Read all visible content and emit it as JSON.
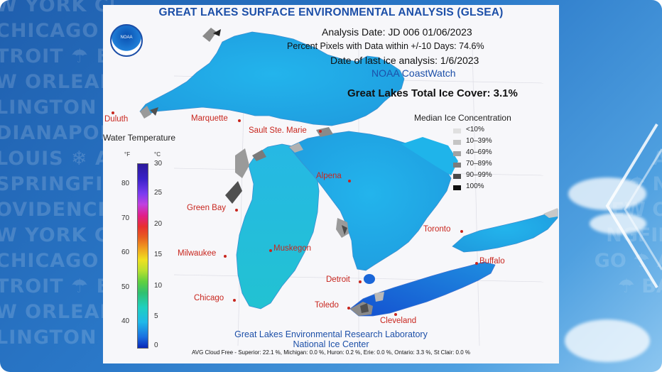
{
  "background": {
    "city_words_left": [
      "W YORK CI",
      "CHICAGO A",
      "TROIT ☂ BA",
      "W ORLEANS",
      "LINGTON ☂",
      "DIANAPOLI",
      "LOUIS ❄ A",
      "SPRINGFIEL",
      "OVIDENCE",
      "W YORK CI",
      "CHICAGO A",
      "TROIT ☂ BA",
      "W ORLEANS",
      "LINGTON ☂"
    ],
    "city_words_right": [
      "AN",
      "☂ NA",
      "EW OR",
      "NGFIEL",
      "GO ☂ AT",
      "☂ BAL"
    ]
  },
  "map": {
    "title": "GREAT LAKES SURFACE ENVIRONMENTAL ANALYSIS (GLSEA)",
    "logo_text": "NOAA",
    "analysis_date": "Analysis Date:  JD 006 01/06/2023",
    "percent_pixels": "Percent Pixels with Data within +/-10 Days:  74.6%",
    "last_ice": "Date of last ice analysis: 1/6/2023",
    "source": "NOAA CoastWatch",
    "total_ice": "Great Lakes Total Ice Cover:   3.1%",
    "water_temp_label": "Water Temperature",
    "unit_f": "°F",
    "unit_c": "°C",
    "ticks_f": [
      "80",
      "70",
      "60",
      "50",
      "40"
    ],
    "ticks_c": [
      "30",
      "25",
      "20",
      "15",
      "10",
      "5",
      "0"
    ],
    "ice_legend_title": "Median Ice Concentration",
    "ice_legend": [
      {
        "label": "<10%",
        "color": "#e0e0e0"
      },
      {
        "label": "10–39%",
        "color": "#c4c4c4"
      },
      {
        "label": "40–69%",
        "color": "#a2a2a2"
      },
      {
        "label": "70–89%",
        "color": "#7c7c7c"
      },
      {
        "label": "90–99%",
        "color": "#4a4a4a"
      },
      {
        "label": "100%",
        "color": "#101010"
      }
    ],
    "cities": {
      "duluth": "Duluth",
      "marquette": "Marquette",
      "sault": "Sault Ste. Marie",
      "alpena": "Alpena",
      "green_bay": "Green Bay",
      "toronto": "Toronto",
      "milwaukee": "Milwaukee",
      "muskegon": "Muskegon",
      "buffalo": "Buffalo",
      "detroit": "Detroit",
      "chicago": "Chicago",
      "toledo": "Toledo",
      "cleveland": "Cleveland"
    },
    "footer_line1": "Great Lakes Environmental Research Laboratory",
    "footer_line2": "National Ice Center",
    "cloud_free": "AVG Cloud Free - Superior:  22.1 %, Michigan:  0.0 %, Huron:  0.2 %, Erie:  0.0 %, Ontario:  3.3 %, St Clair:  0.0 %"
  },
  "colors": {
    "title_blue": "#1c4fa8",
    "lake_cyan": "#1fb0e6",
    "lake_teal": "#23c6d6",
    "lake_blue": "#1a66d8",
    "city_red": "#c8261e"
  }
}
